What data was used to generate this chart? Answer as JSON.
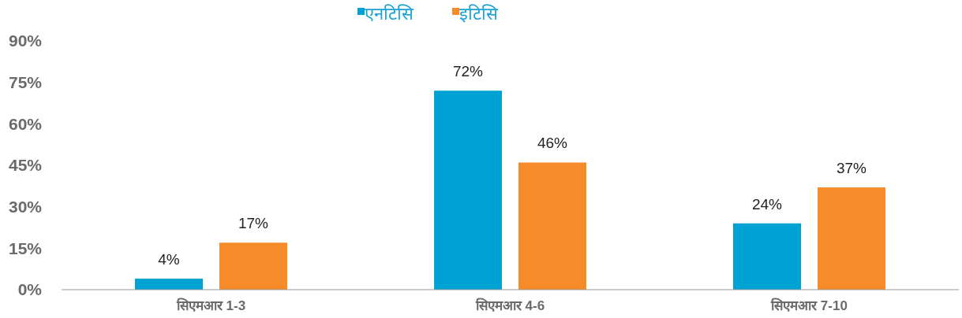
{
  "chart_data": {
    "type": "bar",
    "categories": [
      "सिएमआर 1-3",
      "सिएमआर 4-6",
      "सिएमआर 7-10"
    ],
    "series": [
      {
        "name": "एनटिसि",
        "color": "#00a2d3",
        "values": [
          4,
          72,
          24
        ],
        "value_labels": [
          "4%",
          "72%",
          "24%"
        ]
      },
      {
        "name": "इटिसि",
        "color": "#f68b2a",
        "values": [
          17,
          46,
          37
        ],
        "value_labels": [
          "17%",
          "46%",
          "37%"
        ]
      }
    ],
    "ylim": [
      0,
      90
    ],
    "yticks": [
      {
        "value": 0,
        "label": "0%"
      },
      {
        "value": 15,
        "label": "15%"
      },
      {
        "value": 30,
        "label": "30%"
      },
      {
        "value": 45,
        "label": "45%"
      },
      {
        "value": 60,
        "label": "60%"
      },
      {
        "value": 75,
        "label": "75%"
      },
      {
        "value": 90,
        "label": "90%"
      }
    ],
    "grid": false,
    "legend": "top"
  }
}
